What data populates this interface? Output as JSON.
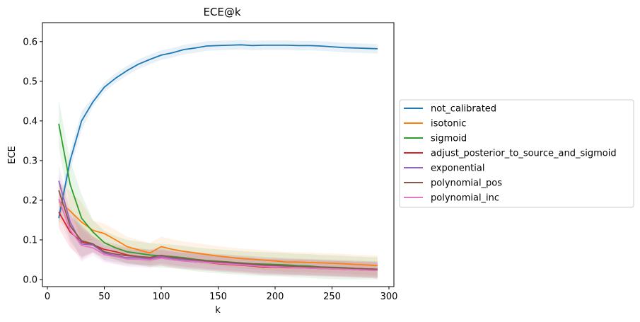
{
  "chart_data": {
    "type": "line",
    "title": "ECE@k",
    "xlabel": "k",
    "ylabel": "ECE",
    "xlim": [
      0,
      300
    ],
    "ylim": [
      0,
      0.63
    ],
    "x_ticks": [
      "0",
      "50",
      "100",
      "150",
      "200",
      "250",
      "300"
    ],
    "y_ticks": [
      "0.0",
      "0.1",
      "0.2",
      "0.3",
      "0.4",
      "0.5",
      "0.6"
    ],
    "grid": false,
    "legend_position": "center-right-outside",
    "x": [
      10,
      20,
      30,
      40,
      50,
      60,
      70,
      80,
      90,
      100,
      110,
      120,
      130,
      140,
      150,
      160,
      170,
      180,
      190,
      200,
      210,
      220,
      230,
      240,
      250,
      260,
      270,
      280,
      290
    ],
    "series": [
      {
        "name": "not_calibrated",
        "color": "#1f77b4",
        "values": [
          0.155,
          0.3,
          0.4,
          0.448,
          0.485,
          0.508,
          0.527,
          0.543,
          0.555,
          0.566,
          0.572,
          0.58,
          0.584,
          0.589,
          0.59,
          0.591,
          0.592,
          0.59,
          0.591,
          0.591,
          0.591,
          0.59,
          0.59,
          0.589,
          0.587,
          0.585,
          0.584,
          0.583,
          0.582
        ],
        "band": 0.012
      },
      {
        "name": "isotonic",
        "color": "#ff7f0e",
        "values": [
          0.197,
          0.173,
          0.145,
          0.124,
          0.116,
          0.1,
          0.083,
          0.075,
          0.067,
          0.083,
          0.076,
          0.071,
          0.067,
          0.063,
          0.059,
          0.056,
          0.053,
          0.051,
          0.049,
          0.047,
          0.044,
          0.044,
          0.043,
          0.042,
          0.041,
          0.04,
          0.038,
          0.037,
          0.035
        ],
        "band": 0.025
      },
      {
        "name": "sigmoid",
        "color": "#2ca02c",
        "values": [
          0.393,
          0.24,
          0.155,
          0.12,
          0.093,
          0.08,
          0.07,
          0.066,
          0.062,
          0.06,
          0.058,
          0.055,
          0.051,
          0.048,
          0.046,
          0.044,
          0.042,
          0.04,
          0.039,
          0.038,
          0.037,
          0.035,
          0.034,
          0.032,
          0.031,
          0.03,
          0.028,
          0.027,
          0.026
        ],
        "band": 0.03
      },
      {
        "name": "adjust_posterior_to_source_and_sigmoid",
        "color": "#d62728",
        "values": [
          0.17,
          0.12,
          0.095,
          0.088,
          0.076,
          0.07,
          0.062,
          0.058,
          0.055,
          0.055,
          0.05,
          0.047,
          0.045,
          0.043,
          0.04,
          0.038,
          0.036,
          0.034,
          0.031,
          0.031,
          0.03,
          0.03,
          0.029,
          0.028,
          0.027,
          0.026,
          0.025,
          0.024,
          0.023
        ],
        "band": 0.02
      },
      {
        "name": "exponential",
        "color": "#9467bd",
        "values": [
          0.249,
          0.145,
          0.09,
          0.087,
          0.067,
          0.06,
          0.055,
          0.055,
          0.052,
          0.058,
          0.053,
          0.05,
          0.048,
          0.045,
          0.043,
          0.041,
          0.039,
          0.037,
          0.035,
          0.034,
          0.033,
          0.032,
          0.031,
          0.03,
          0.029,
          0.028,
          0.027,
          0.026,
          0.025
        ],
        "band": 0.02
      },
      {
        "name": "polynomial_pos",
        "color": "#8c564b",
        "values": [
          0.225,
          0.135,
          0.098,
          0.09,
          0.07,
          0.064,
          0.06,
          0.058,
          0.056,
          0.061,
          0.056,
          0.053,
          0.05,
          0.047,
          0.045,
          0.043,
          0.041,
          0.039,
          0.037,
          0.036,
          0.034,
          0.033,
          0.032,
          0.031,
          0.03,
          0.029,
          0.028,
          0.027,
          0.026
        ],
        "band": 0.02
      },
      {
        "name": "polynomial_inc",
        "color": "#e377c2",
        "values": [
          0.203,
          0.125,
          0.086,
          0.08,
          0.063,
          0.058,
          0.052,
          0.051,
          0.049,
          0.054,
          0.05,
          0.047,
          0.045,
          0.043,
          0.041,
          0.039,
          0.037,
          0.035,
          0.033,
          0.032,
          0.031,
          0.03,
          0.029,
          0.028,
          0.027,
          0.026,
          0.025,
          0.024,
          0.023
        ],
        "band": 0.02
      }
    ]
  }
}
